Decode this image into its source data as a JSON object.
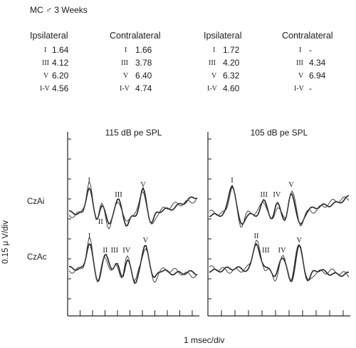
{
  "title": "MC ♂ 3 Weeks",
  "table": {
    "headers": [
      "Ipsilateral",
      "Contralateral",
      "Ipsilateral",
      "Contralateral"
    ],
    "groups": [
      {
        "rows": [
          [
            "I",
            "1.64"
          ],
          [
            "III",
            "4.12"
          ],
          [
            "V",
            "6.20"
          ],
          [
            "I-V",
            "4.56"
          ]
        ]
      },
      {
        "rows": [
          [
            "I",
            "1.66"
          ],
          [
            "III",
            "3.78"
          ],
          [
            "V",
            "6.40"
          ],
          [
            "I-V",
            "4.74"
          ]
        ]
      },
      {
        "rows": [
          [
            "I",
            "1.72"
          ],
          [
            "III",
            "4.20"
          ],
          [
            "V",
            "6.32"
          ],
          [
            "I-V",
            "4.60"
          ]
        ]
      },
      {
        "rows": [
          [
            "I",
            "-"
          ],
          [
            "III",
            "4.34"
          ],
          [
            "V",
            "6.94"
          ],
          [
            "I-V",
            "-"
          ]
        ]
      }
    ]
  },
  "chart_data": {
    "type": "line",
    "ylabel": "0.15 μ V/div",
    "xlabel": "1 msec/div",
    "x_divisions": 10,
    "panels": [
      {
        "title": "115 dB pe SPL",
        "traces": [
          {
            "name": "CzAi",
            "peaks": [
              "I",
              "II",
              "III",
              "V"
            ],
            "peak_latency_ms": [
              1.64,
              2.6,
              4.12,
              6.2
            ]
          },
          {
            "name": "CzAc",
            "peaks": [
              "I",
              "II",
              "III",
              "IV",
              "V"
            ],
            "peak_latency_ms": [
              1.66,
              3.0,
              3.78,
              4.8,
              6.4
            ]
          }
        ]
      },
      {
        "title": "105 dB pe SPL",
        "traces": [
          {
            "name": "CzAi",
            "peaks": [
              "I",
              "III",
              "IV",
              "V"
            ],
            "peak_latency_ms": [
              1.72,
              4.2,
              5.2,
              6.32
            ]
          },
          {
            "name": "CzAc",
            "peaks": [
              "II",
              "III",
              "IV",
              "V"
            ],
            "peak_latency_ms": [
              3.6,
              4.34,
              5.6,
              6.94
            ]
          }
        ]
      }
    ]
  }
}
